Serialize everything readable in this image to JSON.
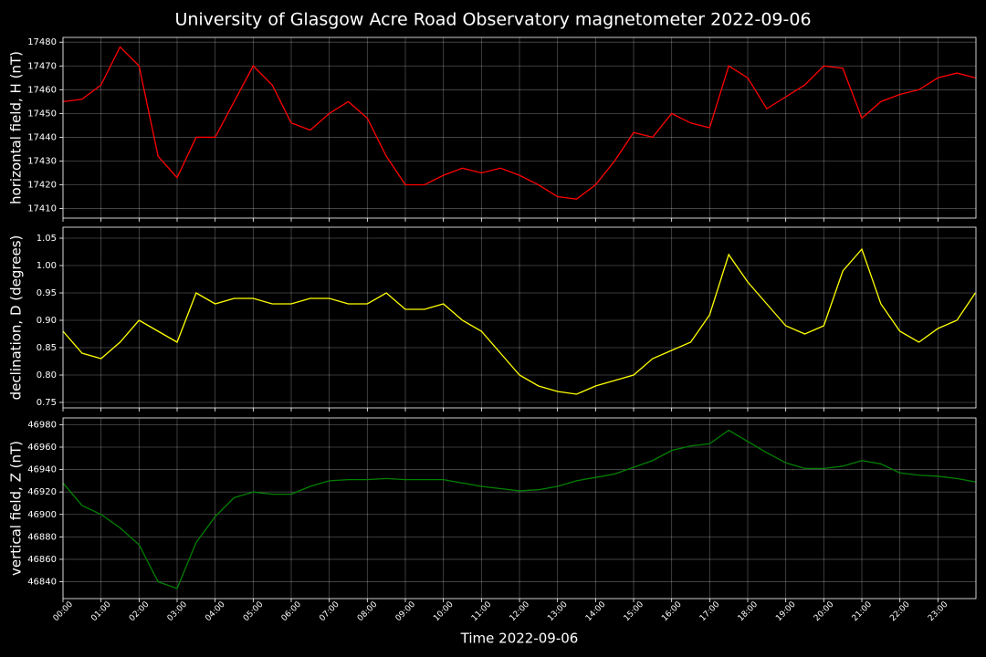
{
  "title": "University of Glasgow Acre Road Observatory magnetometer 2022-09-06",
  "chart_data": [
    {
      "type": "line",
      "ylabel": "horizontal field, H (nT)",
      "color": "#ff0000",
      "grid": true,
      "x": [
        "00:00",
        "00:30",
        "01:00",
        "01:30",
        "02:00",
        "02:30",
        "03:00",
        "03:30",
        "04:00",
        "04:30",
        "05:00",
        "05:30",
        "06:00",
        "06:30",
        "07:00",
        "07:30",
        "08:00",
        "08:30",
        "09:00",
        "09:30",
        "10:00",
        "10:30",
        "11:00",
        "11:30",
        "12:00",
        "12:30",
        "13:00",
        "13:30",
        "14:00",
        "14:30",
        "15:00",
        "15:30",
        "16:00",
        "16:30",
        "17:00",
        "17:30",
        "18:00",
        "18:30",
        "19:00",
        "19:30",
        "20:00",
        "20:30",
        "21:00",
        "21:30",
        "22:00",
        "22:30",
        "23:00",
        "23:30",
        "23:59"
      ],
      "values": [
        17455,
        17456,
        17462,
        17478,
        17470,
        17432,
        17423,
        17440,
        17440,
        17455,
        17470,
        17462,
        17446,
        17443,
        17450,
        17455,
        17448,
        17432,
        17420,
        17420,
        17424,
        17427,
        17425,
        17427,
        17424,
        17420,
        17415,
        17414,
        17420,
        17430,
        17442,
        17440,
        17450,
        17446,
        17444,
        17470,
        17465,
        17452,
        17457,
        17462,
        17470,
        17469,
        17448,
        17455,
        17458,
        17460,
        17465,
        17467,
        17465
      ],
      "xlim": [
        "00:00",
        "23:59"
      ],
      "ylim": [
        17406,
        17482
      ],
      "xticks": [
        "00:00",
        "01:00",
        "02:00",
        "03:00",
        "04:00",
        "05:00",
        "06:00",
        "07:00",
        "08:00",
        "09:00",
        "10:00",
        "11:00",
        "12:00",
        "13:00",
        "14:00",
        "15:00",
        "16:00",
        "17:00",
        "18:00",
        "19:00",
        "20:00",
        "21:00",
        "22:00",
        "23:00"
      ],
      "yticks": [
        17410,
        17420,
        17430,
        17440,
        17450,
        17460,
        17470,
        17480
      ]
    },
    {
      "type": "line",
      "ylabel": "declination, D (degrees)",
      "color": "#ffff00",
      "grid": true,
      "x": [
        "00:00",
        "00:30",
        "01:00",
        "01:30",
        "02:00",
        "02:30",
        "03:00",
        "03:30",
        "04:00",
        "04:30",
        "05:00",
        "05:30",
        "06:00",
        "06:30",
        "07:00",
        "07:30",
        "08:00",
        "08:30",
        "09:00",
        "09:30",
        "10:00",
        "10:30",
        "11:00",
        "11:30",
        "12:00",
        "12:30",
        "13:00",
        "13:30",
        "14:00",
        "14:30",
        "15:00",
        "15:30",
        "16:00",
        "16:30",
        "17:00",
        "17:30",
        "18:00",
        "18:30",
        "19:00",
        "19:30",
        "20:00",
        "20:30",
        "21:00",
        "21:30",
        "22:00",
        "22:30",
        "23:00",
        "23:30",
        "23:59"
      ],
      "values": [
        0.88,
        0.84,
        0.83,
        0.86,
        0.9,
        0.88,
        0.86,
        0.95,
        0.93,
        0.94,
        0.94,
        0.93,
        0.93,
        0.94,
        0.94,
        0.93,
        0.93,
        0.95,
        0.92,
        0.92,
        0.93,
        0.9,
        0.88,
        0.84,
        0.8,
        0.78,
        0.77,
        0.765,
        0.78,
        0.79,
        0.8,
        0.83,
        0.845,
        0.86,
        0.91,
        1.02,
        0.97,
        0.93,
        0.89,
        0.875,
        0.89,
        0.99,
        1.03,
        0.93,
        0.88,
        0.86,
        0.885,
        0.9,
        0.95
      ],
      "xlim": [
        "00:00",
        "23:59"
      ],
      "ylim": [
        0.74,
        1.07
      ],
      "xticks": [
        "00:00",
        "01:00",
        "02:00",
        "03:00",
        "04:00",
        "05:00",
        "06:00",
        "07:00",
        "08:00",
        "09:00",
        "10:00",
        "11:00",
        "12:00",
        "13:00",
        "14:00",
        "15:00",
        "16:00",
        "17:00",
        "18:00",
        "19:00",
        "20:00",
        "21:00",
        "22:00",
        "23:00"
      ],
      "yticks": [
        0.75,
        {
          "value": 0.8,
          "label": "0.80"
        },
        0.85,
        {
          "value": 0.9,
          "label": "0.90"
        },
        0.95,
        {
          "value": 1,
          "label": "1.00"
        },
        1.05
      ]
    },
    {
      "type": "line",
      "ylabel": "vertical field, Z (nT)",
      "xlabel": "Time 2022-09-06",
      "color": "#008000",
      "grid": true,
      "x": [
        "00:00",
        "00:30",
        "01:00",
        "01:30",
        "02:00",
        "02:30",
        "03:00",
        "03:30",
        "04:00",
        "04:30",
        "05:00",
        "05:30",
        "06:00",
        "06:30",
        "07:00",
        "07:30",
        "08:00",
        "08:30",
        "09:00",
        "09:30",
        "10:00",
        "10:30",
        "11:00",
        "11:30",
        "12:00",
        "12:30",
        "13:00",
        "13:30",
        "14:00",
        "14:30",
        "15:00",
        "15:30",
        "16:00",
        "16:30",
        "17:00",
        "17:30",
        "18:00",
        "18:30",
        "19:00",
        "19:30",
        "20:00",
        "20:30",
        "21:00",
        "21:30",
        "22:00",
        "22:30",
        "23:00",
        "23:30",
        "23:59"
      ],
      "values": [
        46928,
        46908,
        46900,
        46888,
        46873,
        46840,
        46834,
        46875,
        46898,
        46915,
        46920,
        46918,
        46918,
        46925,
        46930,
        46931,
        46931,
        46932,
        46931,
        46931,
        46931,
        46928,
        46925,
        46923,
        46921,
        46922,
        46925,
        46930,
        46933,
        46936,
        46942,
        46948,
        46957,
        46961,
        46963,
        46975,
        46965,
        46955,
        46946,
        46941,
        46941,
        46943,
        46948,
        46945,
        46937,
        46935,
        46934,
        46932,
        46929
      ],
      "xlim": [
        "00:00",
        "23:59"
      ],
      "ylim": [
        46825,
        46986
      ],
      "xticks": [
        "00:00",
        "01:00",
        "02:00",
        "03:00",
        "04:00",
        "05:00",
        "06:00",
        "07:00",
        "08:00",
        "09:00",
        "10:00",
        "11:00",
        "12:00",
        "13:00",
        "14:00",
        "15:00",
        "16:00",
        "17:00",
        "18:00",
        "19:00",
        "20:00",
        "21:00",
        "22:00",
        "23:00"
      ],
      "yticks": [
        46840,
        46860,
        46880,
        46900,
        46920,
        46940,
        46960,
        46980
      ]
    }
  ]
}
